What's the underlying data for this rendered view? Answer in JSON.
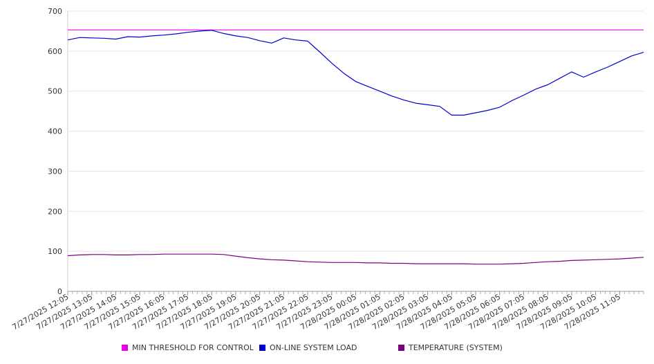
{
  "chart_data": {
    "type": "line",
    "title": "",
    "xlabel": "",
    "ylabel": "",
    "ylim": [
      0,
      700
    ],
    "yticks": [
      0,
      100,
      200,
      300,
      400,
      500,
      600,
      700
    ],
    "ytick_labels": [
      "0",
      "100",
      "200",
      "300",
      "400",
      "500",
      "600",
      "700"
    ],
    "xlim": [
      "7/27/2025 12:05",
      "7/28/2025 12:05"
    ],
    "xtick_labels": [
      "7/27/2025 12:05",
      "7/27/2025 13:05",
      "7/27/2025 14:05",
      "7/27/2025 15:05",
      "7/27/2025 16:05",
      "7/27/2025 17:05",
      "7/27/2025 18:05",
      "7/27/2025 19:05",
      "7/27/2025 20:05",
      "7/27/2025 21:05",
      "7/27/2025 22:05",
      "7/27/2025 23:05",
      "7/28/2025 00:05",
      "7/28/2025 01:05",
      "7/28/2025 02:05",
      "7/28/2025 03:05",
      "7/28/2025 04:05",
      "7/28/2025 05:05",
      "7/28/2025 06:05",
      "7/28/2025 07:05",
      "7/28/2025 08:05",
      "7/28/2025 09:05",
      "7/28/2025 10:05",
      "7/28/2025 11:05"
    ],
    "grid": true,
    "legend_position": "bottom",
    "x": [
      "7/27/2025 12:05",
      "7/27/2025 12:35",
      "7/27/2025 13:05",
      "7/27/2025 13:35",
      "7/27/2025 14:05",
      "7/27/2025 14:35",
      "7/27/2025 15:05",
      "7/27/2025 15:35",
      "7/27/2025 16:05",
      "7/27/2025 16:35",
      "7/27/2025 17:05",
      "7/27/2025 17:35",
      "7/27/2025 18:05",
      "7/27/2025 18:35",
      "7/27/2025 19:05",
      "7/27/2025 19:35",
      "7/27/2025 20:05",
      "7/27/2025 20:35",
      "7/27/2025 21:05",
      "7/27/2025 21:35",
      "7/27/2025 22:05",
      "7/27/2025 22:35",
      "7/27/2025 23:05",
      "7/27/2025 23:35",
      "7/28/2025 00:05",
      "7/28/2025 00:35",
      "7/28/2025 01:05",
      "7/28/2025 01:35",
      "7/28/2025 02:05",
      "7/28/2025 02:35",
      "7/28/2025 03:05",
      "7/28/2025 03:35",
      "7/28/2025 04:05",
      "7/28/2025 04:35",
      "7/28/2025 05:05",
      "7/28/2025 05:35",
      "7/28/2025 06:05",
      "7/28/2025 06:35",
      "7/28/2025 07:05",
      "7/28/2025 07:35",
      "7/28/2025 08:05",
      "7/28/2025 08:35",
      "7/28/2025 09:05",
      "7/28/2025 09:35",
      "7/28/2025 10:05",
      "7/28/2025 10:35",
      "7/28/2025 11:05",
      "7/28/2025 11:35",
      "7/28/2025 12:05"
    ],
    "series": [
      {
        "name": "MIN THRESHOLD FOR CONTROL",
        "color": "#e600e6",
        "values": [
          653,
          653,
          653,
          653,
          653,
          653,
          653,
          653,
          653,
          653,
          653,
          653,
          653,
          653,
          653,
          653,
          653,
          653,
          653,
          653,
          653,
          653,
          653,
          653,
          653,
          653,
          653,
          653,
          653,
          653,
          653,
          653,
          653,
          653,
          653,
          653,
          653,
          653,
          653,
          653,
          653,
          653,
          653,
          653,
          653,
          653,
          653,
          653,
          653
        ]
      },
      {
        "name": "ON-LINE SYSTEM LOAD",
        "color": "#0000cc",
        "values": [
          628,
          634,
          633,
          632,
          630,
          636,
          635,
          638,
          640,
          643,
          647,
          650,
          652,
          644,
          638,
          634,
          626,
          620,
          633,
          628,
          625,
          598,
          570,
          545,
          524,
          512,
          500,
          488,
          478,
          470,
          466,
          462,
          440,
          440,
          446,
          452,
          460,
          476,
          490,
          505,
          516,
          532,
          548,
          535,
          548,
          560,
          574,
          588,
          597
        ]
      },
      {
        "name": "TEMPERATURE (SYSTEM)",
        "color": "#7a0080",
        "values": [
          89,
          91,
          92,
          92,
          91,
          91,
          92,
          92,
          93,
          93,
          93,
          93,
          93,
          92,
          88,
          84,
          81,
          79,
          78,
          76,
          74,
          73,
          72,
          72,
          72,
          71,
          71,
          70,
          70,
          69,
          69,
          69,
          69,
          69,
          68,
          68,
          68,
          69,
          70,
          72,
          74,
          75,
          77,
          78,
          79,
          80,
          81,
          83,
          85
        ]
      }
    ]
  }
}
